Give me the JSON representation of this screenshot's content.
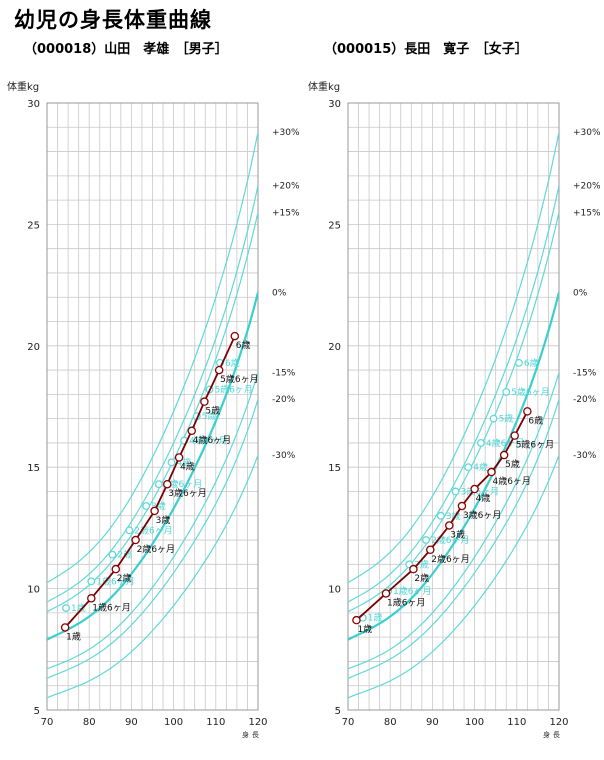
{
  "header": {
    "title": "幼児の身長体重曲線"
  },
  "colors": {
    "grid": "#c8c8c8",
    "reference": "#5fd9d9",
    "reference_mean": "#39cfcf",
    "child_line": "#7a0000",
    "child_marker_fill": "#ffffff",
    "child_marker_stroke": "#8b0000"
  },
  "chart_data": [
    {
      "type": "line",
      "subtitle": "（000018）山田　孝雄　［男子］",
      "ylabel": "体重kg",
      "xlabel": "身長",
      "xlim": [
        70,
        120
      ],
      "ylim": [
        5,
        30
      ],
      "xticks": [
        70,
        80,
        90,
        100,
        110,
        120
      ],
      "yticks": [
        5,
        10,
        15,
        20,
        25,
        30
      ],
      "grid": true,
      "reference_curves": [
        {
          "label": "+30%",
          "label_y": 28.8,
          "x": [
            70,
            80,
            90,
            100,
            110,
            120
          ],
          "y": [
            10.25,
            11.5,
            13.8,
            17.3,
            22.0,
            28.8
          ]
        },
        {
          "label": "+20%",
          "label_y": 26.6,
          "x": [
            70,
            80,
            90,
            100,
            110,
            120
          ],
          "y": [
            9.45,
            10.6,
            12.75,
            16.0,
            20.3,
            26.6
          ]
        },
        {
          "label": "+15%",
          "label_y": 25.5,
          "x": [
            70,
            80,
            90,
            100,
            110,
            120
          ],
          "y": [
            9.05,
            10.15,
            12.2,
            15.3,
            19.45,
            25.5
          ]
        },
        {
          "label": "0%",
          "label_y": 22.2,
          "x": [
            70,
            80,
            90,
            100,
            110,
            120
          ],
          "y": [
            7.9,
            8.85,
            10.6,
            13.3,
            16.9,
            22.2
          ]
        },
        {
          "label": "-15%",
          "label_y": 18.9,
          "x": [
            70,
            80,
            90,
            100,
            110,
            120
          ],
          "y": [
            6.7,
            7.5,
            9.0,
            11.3,
            14.4,
            18.9
          ]
        },
        {
          "label": "-20%",
          "label_y": 17.8,
          "x": [
            70,
            80,
            90,
            100,
            110,
            120
          ],
          "y": [
            6.3,
            7.1,
            8.5,
            10.65,
            13.5,
            17.8
          ]
        },
        {
          "label": "-30%",
          "label_y": 15.5,
          "x": [
            70,
            80,
            90,
            100,
            110,
            120
          ],
          "y": [
            5.5,
            6.2,
            7.4,
            9.3,
            11.85,
            15.5
          ]
        }
      ],
      "standard_points": [
        {
          "age": "1歳",
          "x": 74.5,
          "y": 9.2
        },
        {
          "age": "1歳6ヶ月",
          "x": 80.5,
          "y": 10.3
        },
        {
          "age": "2歳",
          "x": 85.5,
          "y": 11.4
        },
        {
          "age": "2歳6ヶ月",
          "x": 89.5,
          "y": 12.4
        },
        {
          "age": "3歳",
          "x": 93.5,
          "y": 13.4
        },
        {
          "age": "3歳6ヶ月",
          "x": 96.5,
          "y": 14.3
        },
        {
          "age": "4歳",
          "x": 99.5,
          "y": 15.2
        },
        {
          "age": "4歳6ヶ月",
          "x": 102.5,
          "y": 16.1
        },
        {
          "age": "5歳",
          "x": 105.5,
          "y": 17.1
        },
        {
          "age": "5歳6ヶ月",
          "x": 108.5,
          "y": 18.2
        },
        {
          "age": "6歳",
          "x": 111.0,
          "y": 19.3
        }
      ],
      "series": [
        {
          "name": "山田　孝雄",
          "points": [
            {
              "age": "1歳",
              "x": 74.3,
              "y": 8.4
            },
            {
              "age": "1歳6ヶ月",
              "x": 80.5,
              "y": 9.6
            },
            {
              "age": "2歳",
              "x": 86.3,
              "y": 10.8
            },
            {
              "age": "2歳6ヶ月",
              "x": 91.0,
              "y": 12.0
            },
            {
              "age": "3歳",
              "x": 95.5,
              "y": 13.2
            },
            {
              "age": "3歳6ヶ月",
              "x": 98.5,
              "y": 14.3
            },
            {
              "age": "4歳",
              "x": 101.3,
              "y": 15.4
            },
            {
              "age": "4歳6ヶ月",
              "x": 104.3,
              "y": 16.5
            },
            {
              "age": "5歳",
              "x": 107.3,
              "y": 17.7
            },
            {
              "age": "5歳6ヶ月",
              "x": 110.8,
              "y": 19.0
            },
            {
              "age": "6歳",
              "x": 114.5,
              "y": 20.4
            }
          ]
        }
      ]
    },
    {
      "type": "line",
      "subtitle": "（000015）長田　寛子　［女子］",
      "ylabel": "体重kg",
      "xlabel": "身長",
      "xlim": [
        70,
        120
      ],
      "ylim": [
        5,
        30
      ],
      "xticks": [
        70,
        80,
        90,
        100,
        110,
        120
      ],
      "yticks": [
        5,
        10,
        15,
        20,
        25,
        30
      ],
      "grid": true,
      "reference_curves": [
        {
          "label": "+30%",
          "label_y": 28.8,
          "x": [
            70,
            80,
            90,
            100,
            110,
            120
          ],
          "y": [
            10.25,
            11.5,
            13.8,
            17.3,
            22.0,
            28.8
          ]
        },
        {
          "label": "+20%",
          "label_y": 26.6,
          "x": [
            70,
            80,
            90,
            100,
            110,
            120
          ],
          "y": [
            9.45,
            10.6,
            12.75,
            16.0,
            20.3,
            26.6
          ]
        },
        {
          "label": "+15%",
          "label_y": 25.5,
          "x": [
            70,
            80,
            90,
            100,
            110,
            120
          ],
          "y": [
            9.05,
            10.15,
            12.2,
            15.3,
            19.45,
            25.5
          ]
        },
        {
          "label": "0%",
          "label_y": 22.2,
          "x": [
            70,
            80,
            90,
            100,
            110,
            120
          ],
          "y": [
            7.9,
            8.85,
            10.6,
            13.3,
            16.9,
            22.2
          ]
        },
        {
          "label": "-15%",
          "label_y": 18.9,
          "x": [
            70,
            80,
            90,
            100,
            110,
            120
          ],
          "y": [
            6.7,
            7.5,
            9.0,
            11.3,
            14.4,
            18.9
          ]
        },
        {
          "label": "-20%",
          "label_y": 17.8,
          "x": [
            70,
            80,
            90,
            100,
            110,
            120
          ],
          "y": [
            6.3,
            7.1,
            8.5,
            10.65,
            13.5,
            17.8
          ]
        },
        {
          "label": "-30%",
          "label_y": 15.5,
          "x": [
            70,
            80,
            90,
            100,
            110,
            120
          ],
          "y": [
            5.5,
            6.2,
            7.4,
            9.3,
            11.85,
            15.5
          ]
        }
      ],
      "standard_points": [
        {
          "age": "1歳",
          "x": 73.5,
          "y": 8.8
        },
        {
          "age": "1歳6ヶ月",
          "x": 79.5,
          "y": 9.9
        },
        {
          "age": "2歳",
          "x": 84.5,
          "y": 11.0
        },
        {
          "age": "2歳6ヶ月",
          "x": 88.5,
          "y": 12.0
        },
        {
          "age": "3歳",
          "x": 92.0,
          "y": 13.0
        },
        {
          "age": "3歳6ヶ月",
          "x": 95.5,
          "y": 14.0
        },
        {
          "age": "4歳",
          "x": 98.5,
          "y": 15.0
        },
        {
          "age": "4歳6ヶ月",
          "x": 101.5,
          "y": 16.0
        },
        {
          "age": "5歳",
          "x": 104.5,
          "y": 17.0
        },
        {
          "age": "5歳6ヶ月",
          "x": 107.5,
          "y": 18.1
        },
        {
          "age": "6歳",
          "x": 110.5,
          "y": 19.3
        }
      ],
      "series": [
        {
          "name": "長田　寛子",
          "points": [
            {
              "age": "1歳",
              "x": 72.0,
              "y": 8.7
            },
            {
              "age": "1歳6ヶ月",
              "x": 79.0,
              "y": 9.8
            },
            {
              "age": "2歳",
              "x": 85.5,
              "y": 10.8
            },
            {
              "age": "2歳6ヶ月",
              "x": 89.5,
              "y": 11.6
            },
            {
              "age": "3歳",
              "x": 94.0,
              "y": 12.6
            },
            {
              "age": "3歳6ヶ月",
              "x": 97.0,
              "y": 13.4
            },
            {
              "age": "4歳",
              "x": 100.0,
              "y": 14.1
            },
            {
              "age": "4歳6ヶ月",
              "x": 104.0,
              "y": 14.8
            },
            {
              "age": "5歳",
              "x": 107.0,
              "y": 15.5
            },
            {
              "age": "5歳6ヶ月",
              "x": 109.5,
              "y": 16.3
            },
            {
              "age": "6歳",
              "x": 112.5,
              "y": 17.3
            }
          ]
        }
      ]
    }
  ]
}
